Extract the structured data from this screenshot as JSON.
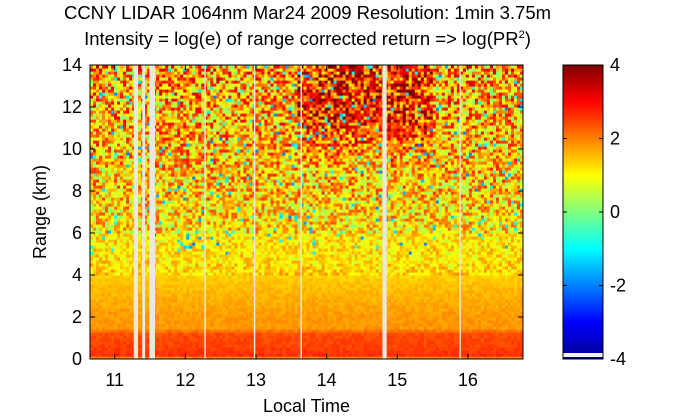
{
  "title_line1": "CCNY LIDAR 1064nm Mar24 2009 Resolution: 1min 3.75m",
  "title_line2_prefix": "Intensity = log(e) of range corrected return => log(PR",
  "title_line2_sup": "2",
  "title_line2_suffix": ")",
  "colors": {
    "colormap": "jet",
    "gap_color": "#ebe8dd",
    "axis_color": "#000000"
  },
  "chart_data": {
    "type": "heatmap",
    "title": "CCNY LIDAR 1064nm Mar24 2009 Resolution: 1min 3.75m",
    "subtitle": "Intensity = log(e) of range corrected return => log(PR2)",
    "xlabel": "Local Time",
    "ylabel": "Range (km)",
    "xlim": [
      10.65,
      16.78
    ],
    "ylim": [
      0,
      14
    ],
    "x_ticks": [
      11,
      12,
      13,
      14,
      15,
      16
    ],
    "x_tick_labels": [
      "11",
      "12",
      "13",
      "14",
      "15",
      "16"
    ],
    "y_ticks": [
      0,
      2,
      4,
      6,
      8,
      10,
      12,
      14
    ],
    "y_tick_labels": [
      "0",
      "2",
      "4",
      "6",
      "8",
      "10",
      "12",
      "14"
    ],
    "colorbar": {
      "range": [
        -4,
        4
      ],
      "ticks": [
        4,
        2,
        0,
        -2,
        -4
      ],
      "tick_labels": [
        "4",
        "2",
        "0",
        "-2",
        "-4"
      ]
    },
    "grid": false,
    "data_gaps_local_time": [
      [
        11.27,
        11.33
      ],
      [
        11.39,
        11.43
      ],
      [
        11.49,
        11.57
      ],
      [
        12.27,
        12.29
      ],
      [
        12.97,
        12.99
      ],
      [
        13.63,
        13.65
      ],
      [
        14.79,
        14.85
      ],
      [
        15.88,
        15.9
      ]
    ],
    "intensity_profile": {
      "range_km": [
        0,
        0.1,
        0.3,
        0.6,
        1.2,
        1.5,
        2.0,
        3.0,
        3.5,
        4.2,
        5.0,
        6.0,
        7.0,
        8.0,
        10.0,
        12.0,
        14.0
      ],
      "log_pr2": [
        0.3,
        2.7,
        2.6,
        2.5,
        2.4,
        1.8,
        1.8,
        1.6,
        1.5,
        1.3,
        1.2,
        1.2,
        1.3,
        1.4,
        1.5,
        1.6,
        1.7
      ]
    },
    "high_signal_region_local_time": [
      13.6,
      15.5
    ],
    "high_signal_region_range_km": [
      9,
      14
    ],
    "high_signal_value": 3.0
  }
}
